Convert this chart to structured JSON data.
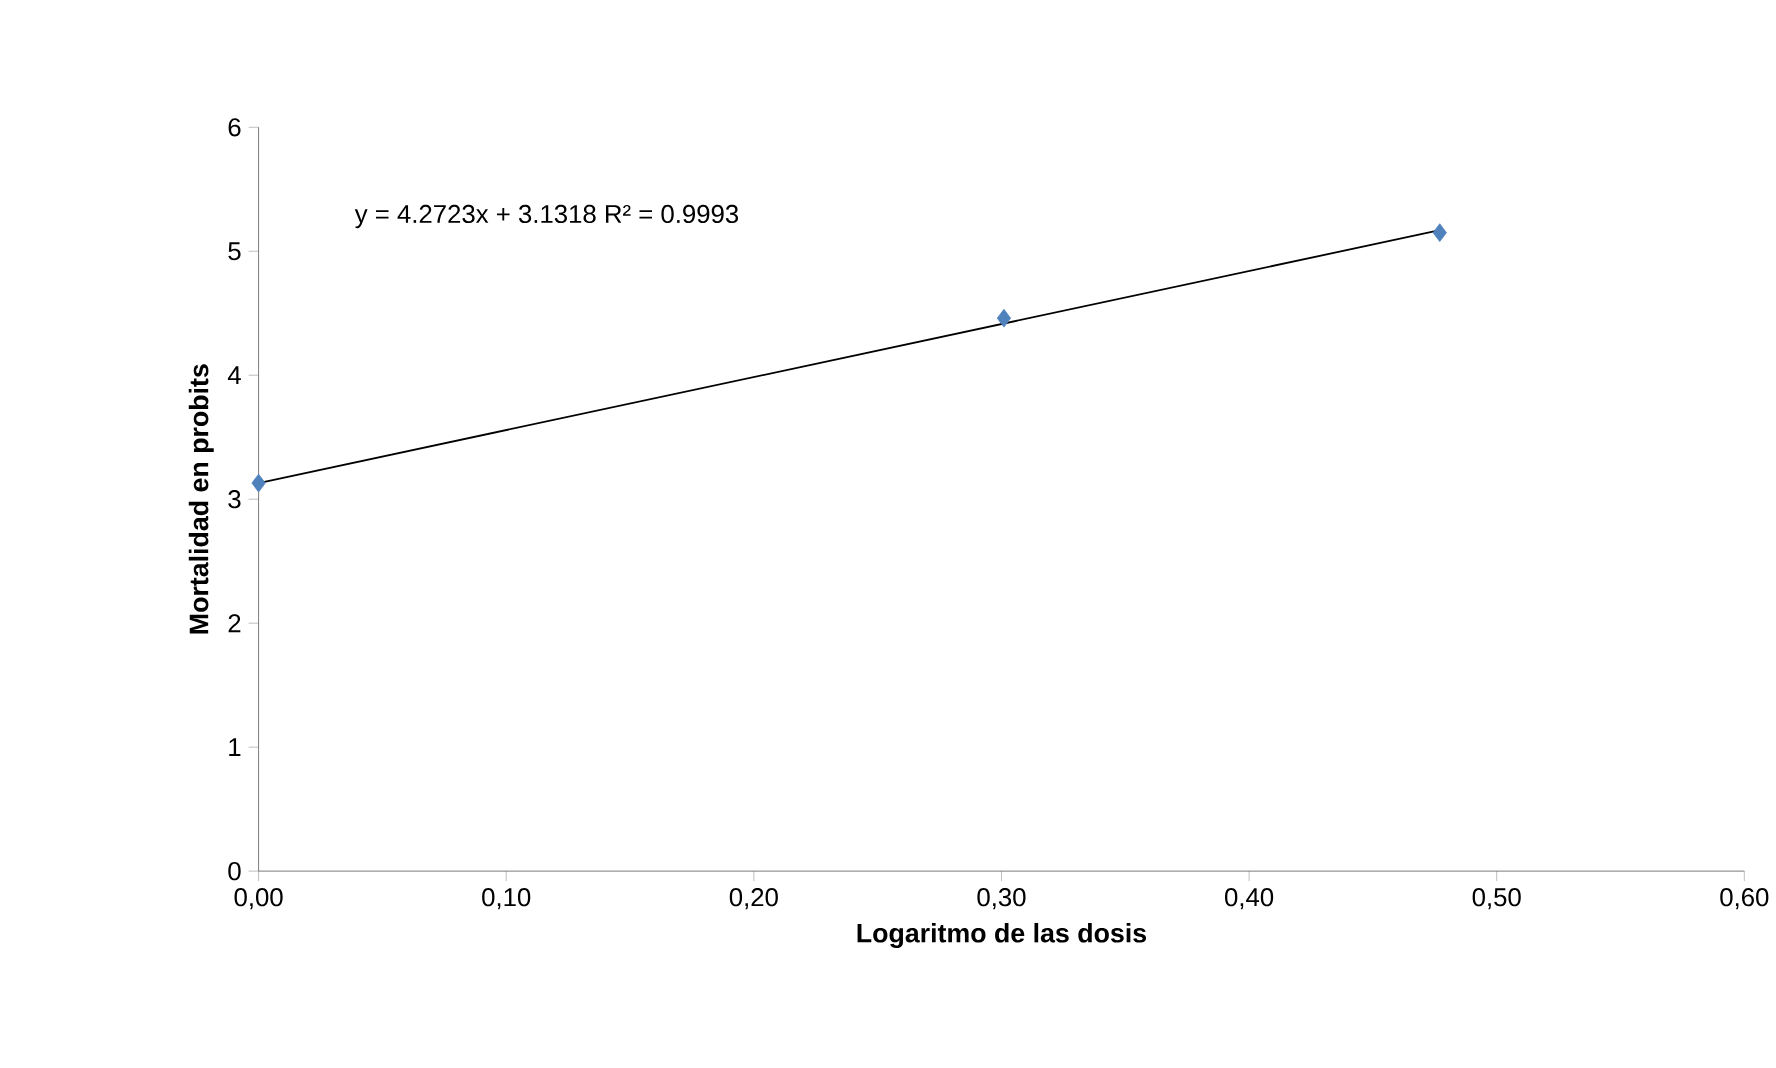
{
  "chart_data": {
    "type": "scatter",
    "xlabel": "Logaritmo de las dosis",
    "ylabel": "Mortalidad en probits",
    "series": [
      {
        "color": "#4f81bd",
        "marker": "diamond",
        "x": [
          0,
          0.301,
          0.477
        ],
        "values": [
          3.13,
          4.46,
          5.15
        ]
      },
      {
        "type": "line",
        "color": "#000000",
        "marker": "none",
        "line_style": "solid",
        "x": [
          0,
          0.477
        ],
        "values": [
          3.13,
          5.17
        ]
      }
    ],
    "annotations": [
      "y = 4.2723x + 3.1318  R² = 0.9993"
    ],
    "xlim": [
      0,
      0.6
    ],
    "ylim": [
      0,
      6
    ],
    "xticks": [
      {
        "value": 0,
        "label": "0,00"
      },
      {
        "value": 0.1,
        "label": "0,10"
      },
      {
        "value": 0.2,
        "label": "0,20"
      },
      {
        "value": 0.3,
        "label": "0,30"
      },
      {
        "value": 0.4,
        "label": "0,40"
      },
      {
        "value": 0.5,
        "label": "0,50"
      },
      {
        "value": 0.6,
        "label": "0,60"
      }
    ],
    "yticks": [
      0,
      1,
      2,
      3,
      4,
      5,
      6
    ]
  }
}
